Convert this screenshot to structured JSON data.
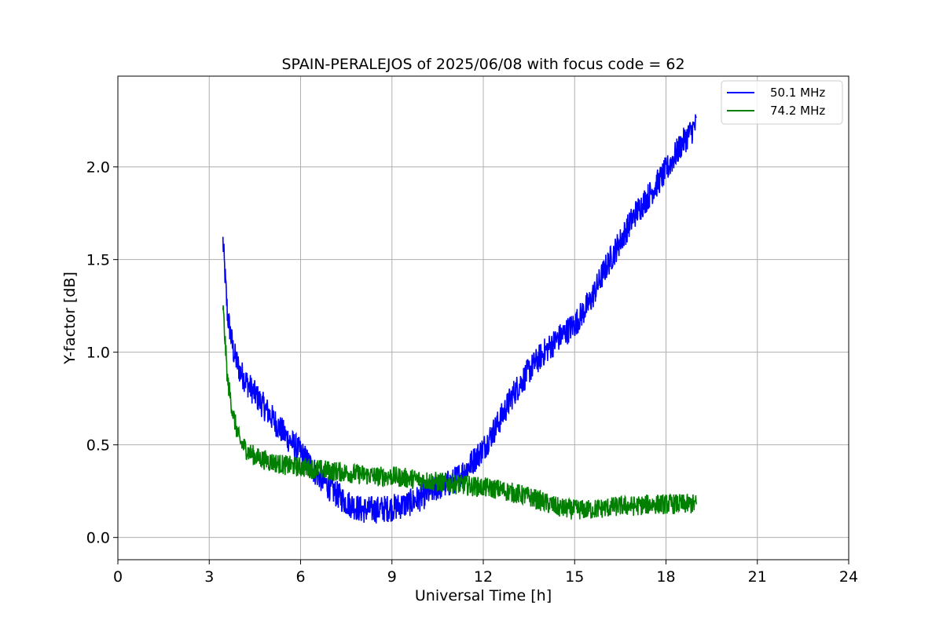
{
  "chart_data": {
    "type": "line",
    "title": "SPAIN-PERALEJOS of 2025/06/08 with focus code = 62",
    "xlabel": "Universal Time [h]",
    "ylabel": "Y-factor [dB]",
    "xlim": [
      0,
      24
    ],
    "ylim": [
      -0.12,
      2.49
    ],
    "xticks": [
      0,
      3,
      6,
      9,
      12,
      15,
      18,
      21,
      24
    ],
    "yticks": [
      0.0,
      0.5,
      1.0,
      1.5,
      2.0
    ],
    "xtick_labels": [
      "0",
      "3",
      "6",
      "9",
      "12",
      "15",
      "18",
      "21",
      "24"
    ],
    "ytick_labels": [
      "0.0",
      "0.5",
      "1.0",
      "1.5",
      "2.0"
    ],
    "grid": true,
    "legend_position": "top-right",
    "series": [
      {
        "name": "50.1 MHz",
        "color": "#0000ff",
        "x": [
          3.45,
          3.6,
          3.8,
          4.0,
          4.3,
          4.6,
          5.0,
          5.5,
          6.0,
          6.5,
          7.0,
          7.5,
          8.0,
          8.5,
          9.0,
          9.5,
          10.0,
          10.5,
          11.0,
          11.5,
          12.0,
          12.5,
          13.0,
          13.5,
          14.0,
          14.5,
          15.0,
          15.5,
          16.0,
          16.5,
          17.0,
          17.5,
          18.0,
          18.5,
          19.0
        ],
        "y": [
          1.6,
          1.2,
          1.0,
          0.9,
          0.82,
          0.75,
          0.66,
          0.55,
          0.46,
          0.35,
          0.26,
          0.19,
          0.15,
          0.15,
          0.16,
          0.18,
          0.22,
          0.27,
          0.3,
          0.38,
          0.48,
          0.62,
          0.78,
          0.9,
          1.0,
          1.08,
          1.15,
          1.27,
          1.45,
          1.6,
          1.75,
          1.86,
          1.98,
          2.12,
          2.23
        ]
      },
      {
        "name": "74.2 MHz",
        "color": "#008000",
        "x": [
          3.45,
          3.6,
          3.8,
          4.0,
          4.3,
          4.6,
          5.0,
          5.5,
          6.0,
          6.5,
          7.0,
          7.5,
          8.0,
          8.5,
          9.0,
          9.5,
          10.0,
          10.5,
          11.0,
          11.5,
          12.0,
          12.5,
          13.0,
          13.5,
          14.0,
          14.5,
          15.0,
          15.5,
          16.0,
          16.5,
          17.0,
          17.5,
          18.0,
          18.5,
          19.0
        ],
        "y": [
          1.25,
          0.85,
          0.65,
          0.52,
          0.46,
          0.43,
          0.41,
          0.39,
          0.38,
          0.37,
          0.36,
          0.35,
          0.34,
          0.33,
          0.33,
          0.32,
          0.31,
          0.3,
          0.29,
          0.28,
          0.27,
          0.26,
          0.24,
          0.22,
          0.19,
          0.16,
          0.15,
          0.15,
          0.16,
          0.17,
          0.17,
          0.18,
          0.18,
          0.18,
          0.18
        ]
      }
    ]
  }
}
